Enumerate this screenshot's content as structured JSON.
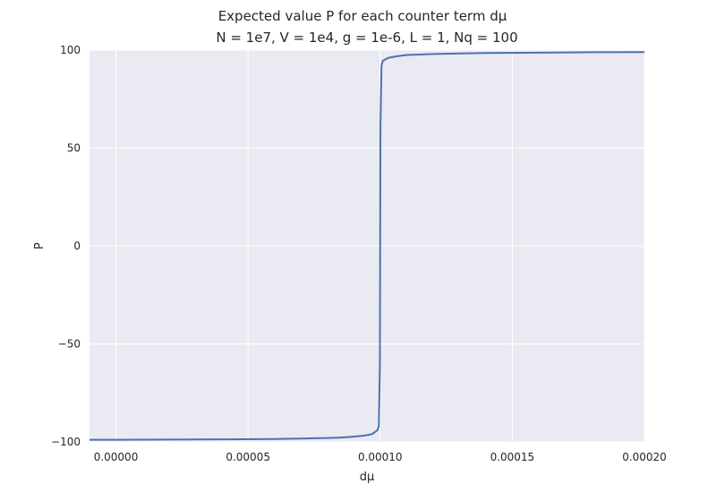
{
  "chart_data": {
    "type": "line",
    "suptitle": "Expected value P for each counter term dμ",
    "title": "N = 1e7, V = 1e4, g = 1e-6, L = 1, Nq = 100",
    "xlabel": "dμ",
    "ylabel": "P",
    "xlim": [
      -1e-05,
      0.0002
    ],
    "ylim": [
      -100,
      100
    ],
    "xticks": [
      0,
      5e-05,
      0.0001,
      0.00015,
      0.0002
    ],
    "xtick_labels": [
      "0.00000",
      "0.00005",
      "0.00010",
      "0.00015",
      "0.00020"
    ],
    "yticks": [
      -100,
      -50,
      0,
      50,
      100
    ],
    "ytick_labels": [
      "−100",
      "−50",
      "0",
      "50",
      "100"
    ],
    "grid": true,
    "colors": {
      "line": "#4c72b0",
      "background": "#eaeaf2",
      "grid": "#ffffff"
    },
    "series": [
      {
        "x": [
          -1e-05,
          0,
          2e-05,
          4e-05,
          6e-05,
          7e-05,
          8e-05,
          8.5e-05,
          9e-05,
          9.4e-05,
          9.7e-05,
          9.9e-05,
          9.95e-05,
          9.99e-05,
          0.0001,
          0.0001001,
          0.0001005,
          0.000101,
          0.000103,
          0.000106,
          0.00011,
          0.00012,
          0.00014,
          0.00016,
          0.00018,
          0.0002
        ],
        "y": [
          -98.9,
          -98.9,
          -98.8,
          -98.7,
          -98.5,
          -98.3,
          -98.0,
          -97.8,
          -97.3,
          -96.8,
          -96.0,
          -94.0,
          -92.0,
          -60.0,
          0,
          60.0,
          92.0,
          94.5,
          96.0,
          96.8,
          97.5,
          98.0,
          98.5,
          98.7,
          98.9,
          99.0
        ]
      }
    ]
  }
}
